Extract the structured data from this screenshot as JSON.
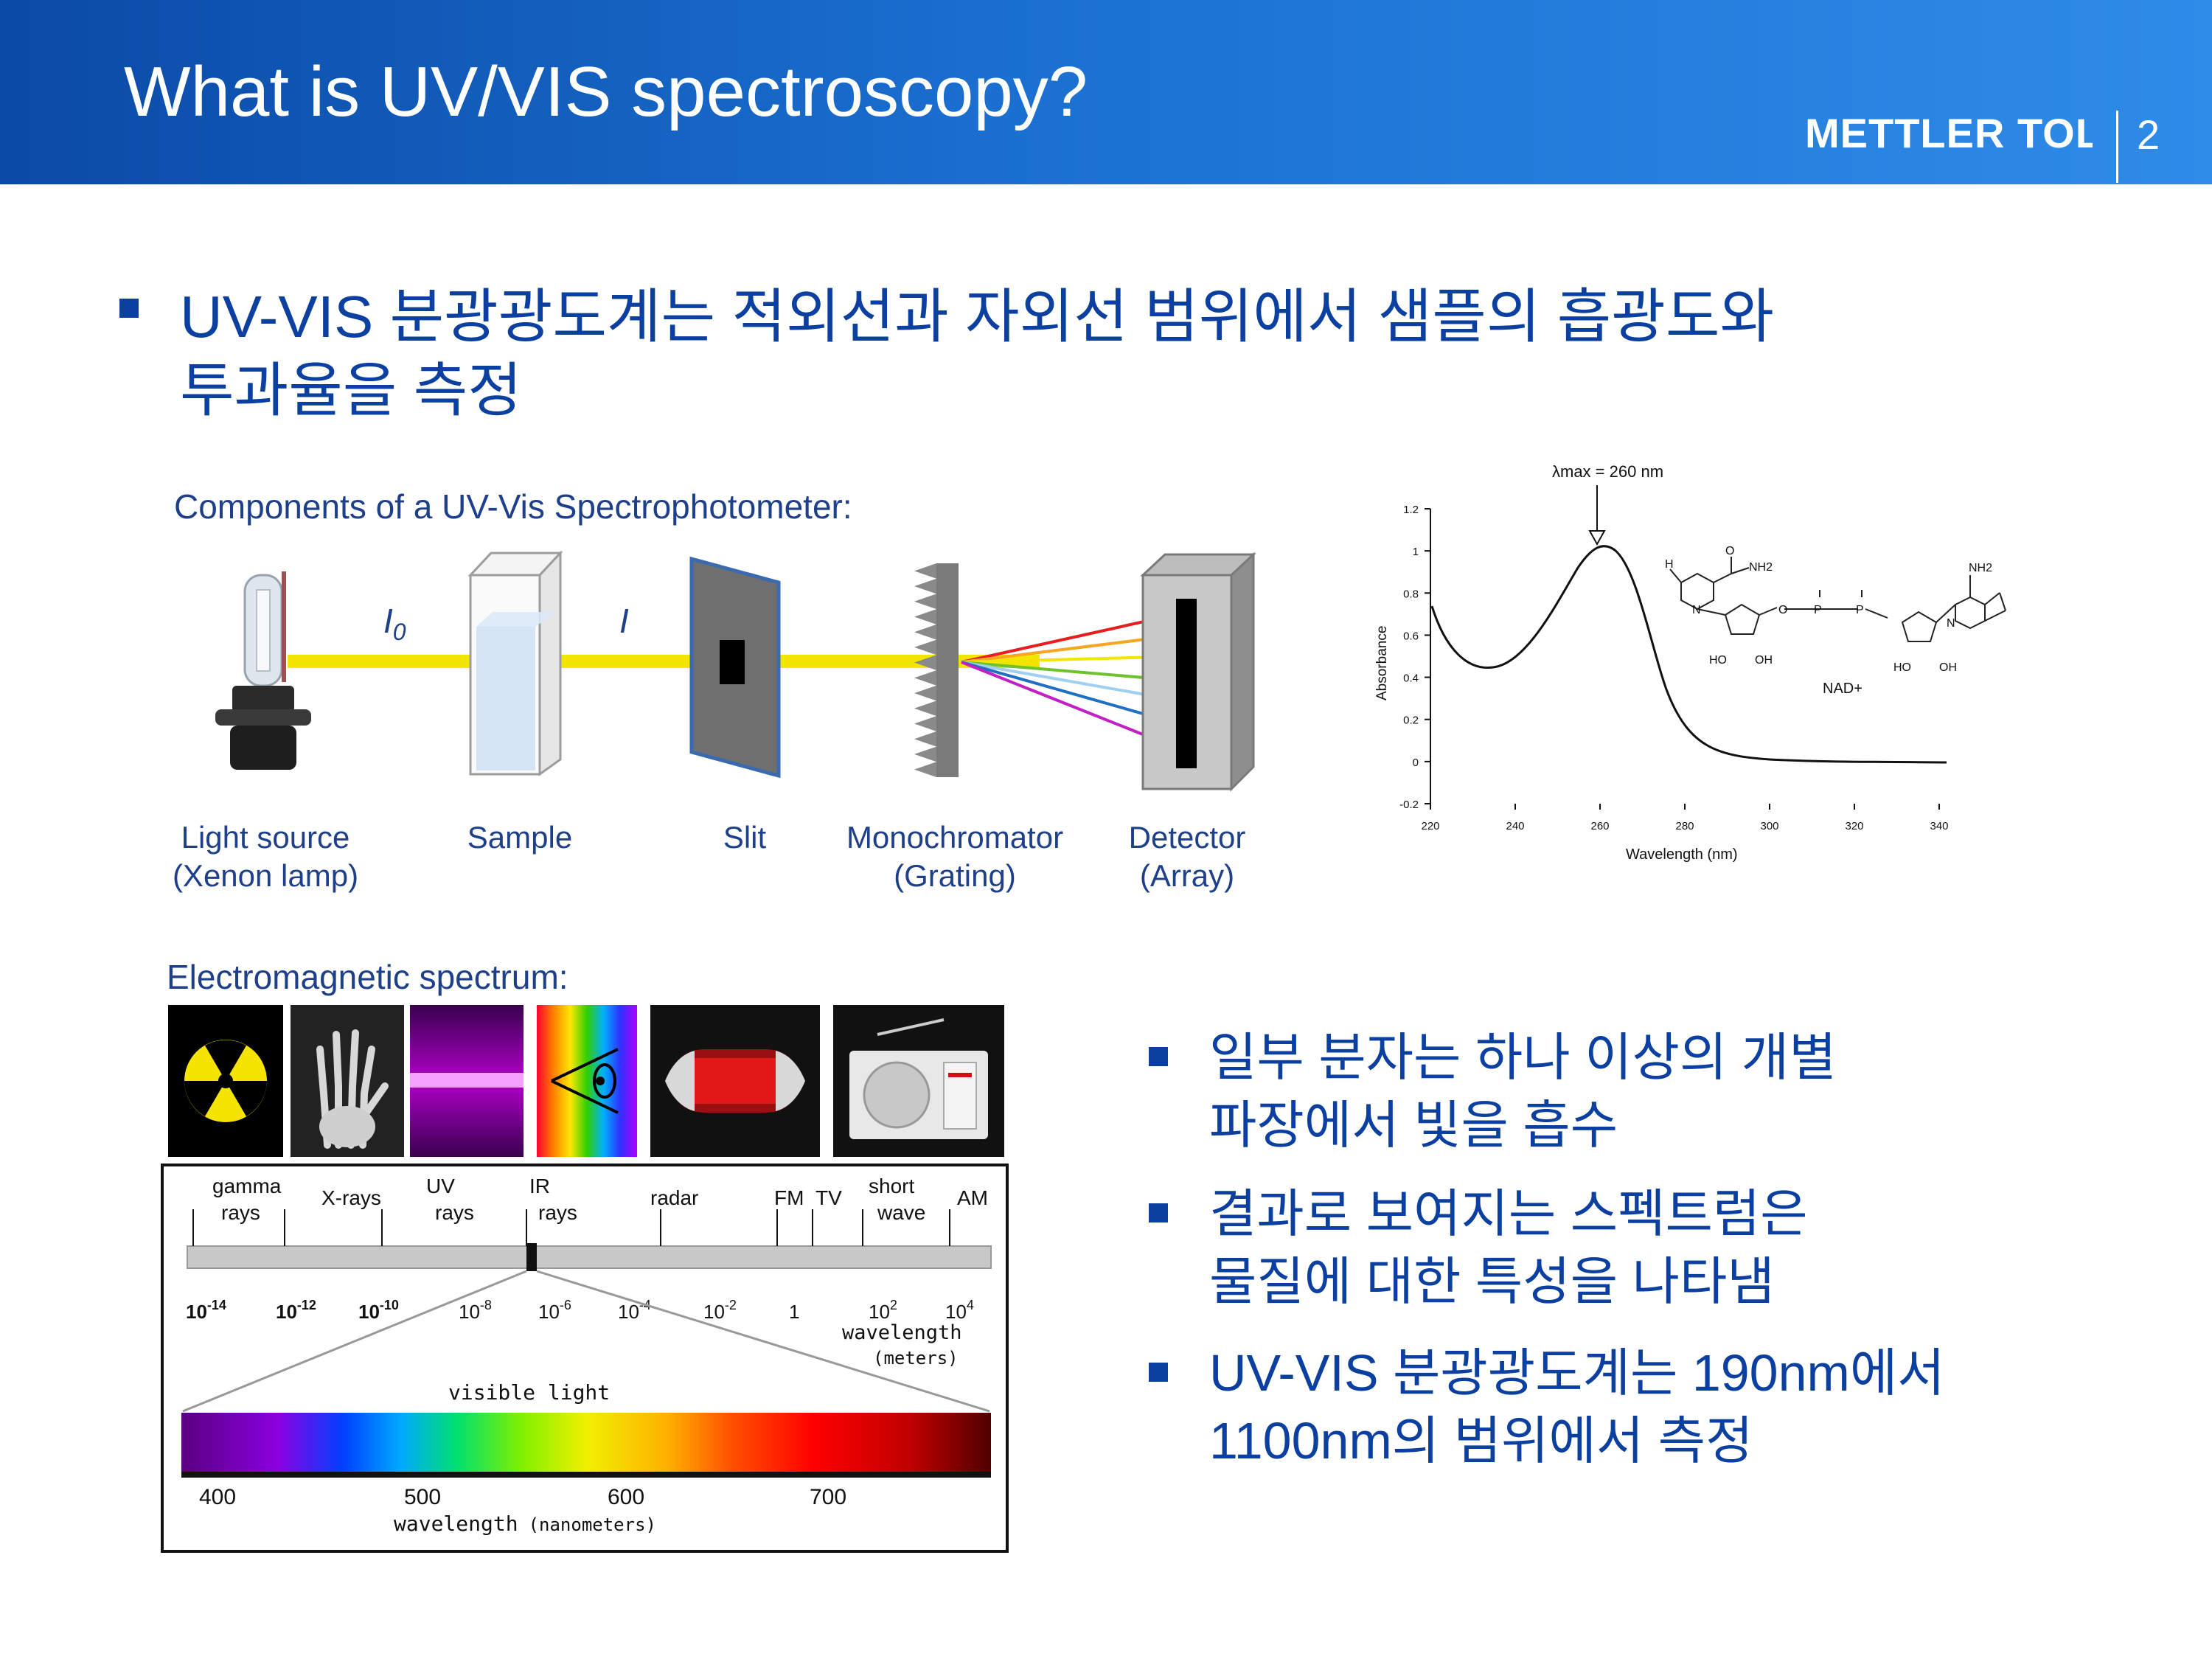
{
  "header": {
    "title": "What is UV/VIS spectroscopy?",
    "logo_text": "METTLER TOLEDO",
    "page_number": "2"
  },
  "main_bullet": {
    "line1": "UV-VIS 분광광도계는 적외선과 자외선 범위에서 샘플의 흡광도와",
    "line2": "투과율을 측정"
  },
  "components": {
    "heading": "Components of a UV-Vis Spectrophotometer:",
    "beam_labels": {
      "i0": "I",
      "i0_sub": "0",
      "i": "I"
    },
    "items": [
      {
        "name": "Light source",
        "detail": "(Xenon lamp)"
      },
      {
        "name": "Sample",
        "detail": ""
      },
      {
        "name": "Slit",
        "detail": ""
      },
      {
        "name": "Monochromator",
        "detail": "(Grating)"
      },
      {
        "name": "Detector",
        "detail": "(Array)"
      }
    ]
  },
  "absorbance_plot": {
    "annotation": "λmax = 260 nm",
    "ylabel": "Absorbance",
    "xlabel": "Wavelength (nm)",
    "y_ticks": [
      "1.2",
      "1",
      "0.8",
      "0.6",
      "0.4",
      "0.2",
      "0",
      "-0.2"
    ],
    "x_ticks": [
      "220",
      "240",
      "260",
      "280",
      "300",
      "320",
      "340"
    ],
    "molecule_name": "NAD+",
    "molecule_labels": [
      "H",
      "O",
      "NH2",
      "N",
      "O",
      "P",
      "P",
      "HO",
      "OH",
      "HO",
      "OH",
      "N",
      "NH2"
    ]
  },
  "em_spectrum": {
    "heading": "Electromagnetic spectrum:",
    "bands": [
      {
        "l1": "gamma",
        "l2": "rays"
      },
      {
        "l1": "X-rays",
        "l2": ""
      },
      {
        "l1": "UV",
        "l2": "rays"
      },
      {
        "l1": "IR",
        "l2": "rays"
      },
      {
        "l1": "radar",
        "l2": ""
      },
      {
        "l1": "FM",
        "l2": ""
      },
      {
        "l1": "TV",
        "l2": ""
      },
      {
        "l1": "short",
        "l2": "wave"
      },
      {
        "l1": "AM",
        "l2": ""
      }
    ],
    "scale": [
      {
        "m": "10",
        "e": "-14"
      },
      {
        "m": "10",
        "e": "-12"
      },
      {
        "m": "10",
        "e": "-10"
      },
      {
        "m": "10",
        "e": "-8"
      },
      {
        "m": "10",
        "e": "-6"
      },
      {
        "m": "10",
        "e": "-4"
      },
      {
        "m": "10",
        "e": "-2"
      },
      {
        "m": "1",
        "e": ""
      },
      {
        "m": "10",
        "e": "2"
      },
      {
        "m": "10",
        "e": "4"
      }
    ],
    "scale_unit_1": "wavelength",
    "scale_unit_2": "(meters)",
    "visible_label": "visible light",
    "nm_ticks": [
      "400",
      "500",
      "600",
      "700"
    ],
    "nm_unit": "wavelength",
    "nm_unit_paren": "(nanometers)"
  },
  "side_bullets": [
    {
      "line1": "일부 분자는 하나 이상의 개별",
      "line2": "파장에서 빛을 흡수"
    },
    {
      "line1": "결과로 보여지는 스펙트럼은",
      "line2": "물질에 대한 특성을 나타냄"
    },
    {
      "line1": "UV-VIS 분광광도계는 190nm에서",
      "line2": "1100nm의 범위에서 측정"
    }
  ],
  "colors": {
    "header_start": "#0b4aa6",
    "header_end": "#2f8be8",
    "bullet_text": "#0b3fa0",
    "caption": "#1e3f8a",
    "beam": "#f2e600"
  }
}
